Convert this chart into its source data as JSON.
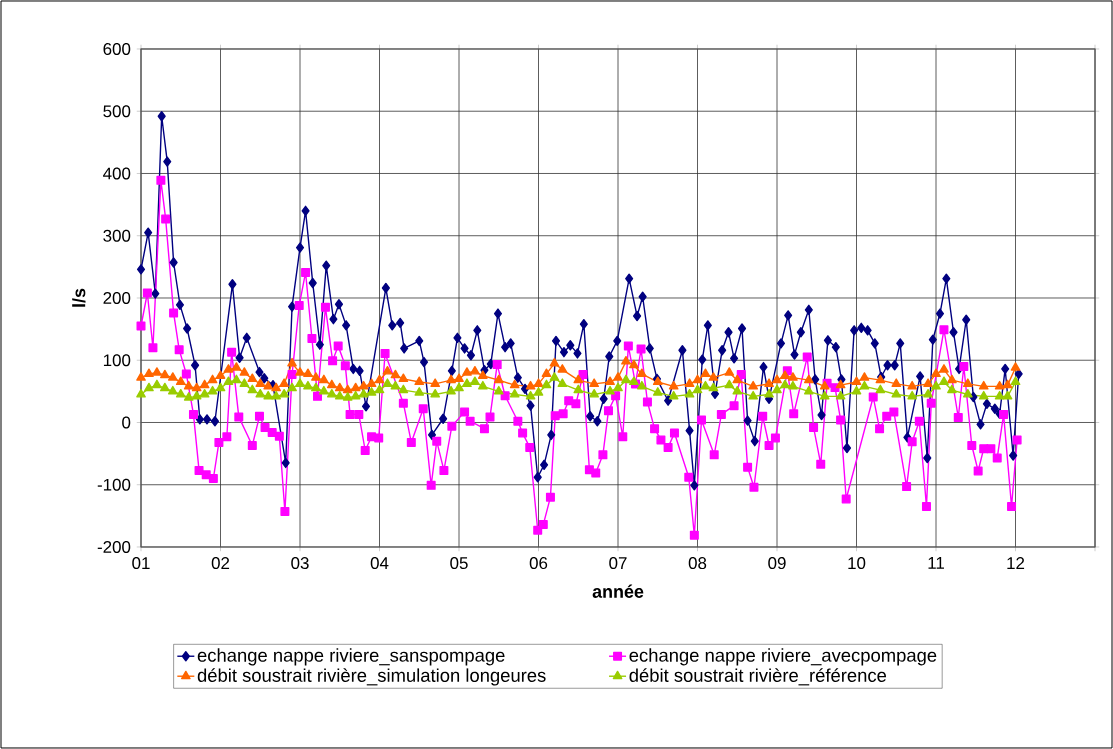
{
  "chart_data": {
    "type": "line",
    "xlabel": "année",
    "ylabel": "l/s",
    "xlim": [
      1,
      13
    ],
    "ylim": [
      -200,
      600
    ],
    "xticks": [
      {
        "value": 1,
        "label": "01"
      },
      {
        "value": 2,
        "label": "02"
      },
      {
        "value": 3,
        "label": "03"
      },
      {
        "value": 4,
        "label": "04"
      },
      {
        "value": 5,
        "label": "05"
      },
      {
        "value": 6,
        "label": "06"
      },
      {
        "value": 7,
        "label": "07"
      },
      {
        "value": 8,
        "label": "08"
      },
      {
        "value": 9,
        "label": "09"
      },
      {
        "value": 10,
        "label": "10"
      },
      {
        "value": 11,
        "label": "11"
      },
      {
        "value": 12,
        "label": "12"
      },
      {
        "value": 13,
        "label": null
      }
    ],
    "yticks": [
      -200,
      -100,
      0,
      100,
      200,
      300,
      400,
      500,
      600
    ],
    "grid": true,
    "legend": "bottom",
    "line_style": "solid",
    "series": [
      {
        "name": "echange nappe riviere_sanspompage",
        "color": "#000080",
        "marker": "diamond",
        "x": [
          1.0,
          1.09,
          1.18,
          1.26,
          1.33,
          1.41,
          1.49,
          1.58,
          1.68,
          1.74,
          1.83,
          1.93,
          2.15,
          2.24,
          2.33,
          2.49,
          2.55,
          2.66,
          2.82,
          2.9,
          3.0,
          3.07,
          3.16,
          3.25,
          3.33,
          3.42,
          3.49,
          3.58,
          3.67,
          3.75,
          3.83,
          4.08,
          4.16,
          4.26,
          4.31,
          4.5,
          4.56,
          4.66,
          4.8,
          4.91,
          4.98,
          5.07,
          5.15,
          5.23,
          5.32,
          5.4,
          5.49,
          5.58,
          5.65,
          5.74,
          5.83,
          5.9,
          5.99,
          6.07,
          6.16,
          6.22,
          6.32,
          6.4,
          6.49,
          6.57,
          6.65,
          6.74,
          6.82,
          6.89,
          6.99,
          7.14,
          7.24,
          7.31,
          7.4,
          7.49,
          7.63,
          7.81,
          7.9,
          7.96,
          8.06,
          8.13,
          8.22,
          8.31,
          8.39,
          8.46,
          8.56,
          8.63,
          8.72,
          8.83,
          8.9,
          9.05,
          9.14,
          9.22,
          9.3,
          9.4,
          9.48,
          9.56,
          9.64,
          9.74,
          9.81,
          9.88,
          9.97,
          10.06,
          10.14,
          10.23,
          10.31,
          10.39,
          10.48,
          10.55,
          10.64,
          10.8,
          10.89,
          10.96,
          11.05,
          11.13,
          11.22,
          11.29,
          11.38,
          11.47,
          11.56,
          11.64,
          11.74,
          11.8,
          11.87,
          11.97,
          12.04
        ],
        "values": [
          246,
          305,
          207,
          492,
          419,
          257,
          189,
          151,
          92,
          5,
          5,
          2,
          222,
          104,
          136,
          81,
          71,
          60,
          -65,
          186,
          281,
          340,
          224,
          125,
          252,
          166,
          190,
          156,
          86,
          83,
          26,
          216,
          156,
          160,
          119,
          131,
          97,
          -20,
          6,
          83,
          136,
          119,
          108,
          148,
          84,
          94,
          175,
          121,
          127,
          72,
          54,
          27,
          -88,
          -68,
          -20,
          131,
          113,
          124,
          111,
          158,
          10,
          2,
          38,
          106,
          131,
          231,
          171,
          202,
          119,
          70,
          35,
          116,
          -13,
          -101,
          101,
          156,
          46,
          116,
          145,
          103,
          151,
          3,
          -30,
          89,
          38,
          127,
          172,
          109,
          145,
          181,
          69,
          12,
          132,
          121,
          69,
          -41,
          148,
          152,
          148,
          127,
          73,
          92,
          92,
          127,
          -24,
          74,
          -57,
          133,
          175,
          231,
          145,
          86,
          165,
          41,
          -3,
          30,
          22,
          14,
          86,
          -53,
          78
        ]
      },
      {
        "name": "echange nappe riviere_avecpompage",
        "color": "#ff00ff",
        "marker": "square",
        "x": [
          1.0,
          1.08,
          1.15,
          1.25,
          1.31,
          1.41,
          1.48,
          1.57,
          1.66,
          1.73,
          1.82,
          1.91,
          1.98,
          2.08,
          2.14,
          2.23,
          2.4,
          2.49,
          2.56,
          2.65,
          2.74,
          2.81,
          2.9,
          2.99,
          3.07,
          3.15,
          3.22,
          3.32,
          3.41,
          3.48,
          3.57,
          3.63,
          3.74,
          3.82,
          3.9,
          3.99,
          4.07,
          4.3,
          4.4,
          4.55,
          4.65,
          4.72,
          4.81,
          4.91,
          5.07,
          5.14,
          5.32,
          5.39,
          5.48,
          5.58,
          5.74,
          5.8,
          5.89,
          5.99,
          6.06,
          6.15,
          6.21,
          6.31,
          6.38,
          6.47,
          6.56,
          6.64,
          6.72,
          6.81,
          6.88,
          6.97,
          7.06,
          7.13,
          7.22,
          7.29,
          7.37,
          7.46,
          7.54,
          7.63,
          7.71,
          7.89,
          7.96,
          8.05,
          8.21,
          8.3,
          8.46,
          8.55,
          8.63,
          8.71,
          8.82,
          8.9,
          8.98,
          9.13,
          9.21,
          9.38,
          9.46,
          9.55,
          9.63,
          9.73,
          9.8,
          9.87,
          10.21,
          10.29,
          10.38,
          10.47,
          10.63,
          10.7,
          10.79,
          10.88,
          10.94,
          11.1,
          11.28,
          11.35,
          11.45,
          11.53,
          11.6,
          11.69,
          11.77,
          11.85,
          11.95,
          12.02
        ],
        "values": [
          155,
          208,
          120,
          389,
          327,
          176,
          117,
          78,
          13,
          -77,
          -84,
          -90,
          -32,
          -23,
          113,
          9,
          -37,
          10,
          -8,
          -16,
          -22,
          -143,
          77,
          188,
          241,
          135,
          42,
          185,
          99,
          123,
          91,
          13,
          13,
          -45,
          -23,
          -25,
          111,
          31,
          -32,
          22,
          -101,
          -30,
          -77,
          -6,
          17,
          2,
          -10,
          9,
          93,
          43,
          2,
          -17,
          -40,
          -173,
          -164,
          -120,
          11,
          14,
          35,
          30,
          77,
          -76,
          -81,
          -52,
          19,
          43,
          -23,
          123,
          62,
          118,
          33,
          -10,
          -28,
          -40,
          -17,
          -88,
          -181,
          4,
          -52,
          13,
          27,
          77,
          -72,
          -104,
          10,
          -37,
          -25,
          83,
          14,
          105,
          -8,
          -67,
          63,
          56,
          4,
          -123,
          41,
          -10,
          10,
          17,
          -103,
          -31,
          2,
          -135,
          31,
          149,
          8,
          90,
          -37,
          -78,
          -42,
          -42,
          -57,
          13,
          -135,
          -28
        ]
      },
      {
        "name": "débit soustrait rivière_simulation longeures",
        "color": "#ff6600",
        "marker": "triangle",
        "x": [
          1.0,
          1.1,
          1.2,
          1.3,
          1.4,
          1.5,
          1.6,
          1.7,
          1.8,
          1.9,
          2.0,
          2.1,
          2.2,
          2.3,
          2.4,
          2.5,
          2.6,
          2.7,
          2.8,
          2.9,
          3.0,
          3.1,
          3.2,
          3.3,
          3.4,
          3.5,
          3.6,
          3.7,
          3.8,
          3.9,
          4.0,
          4.1,
          4.2,
          4.3,
          4.5,
          4.7,
          4.9,
          5.0,
          5.1,
          5.2,
          5.3,
          5.5,
          5.7,
          5.9,
          6.0,
          6.1,
          6.2,
          6.3,
          6.5,
          6.7,
          6.9,
          7.0,
          7.1,
          7.2,
          7.3,
          7.5,
          7.7,
          7.9,
          8.0,
          8.1,
          8.2,
          8.4,
          8.5,
          8.7,
          8.9,
          9.0,
          9.1,
          9.2,
          9.4,
          9.6,
          9.8,
          10.0,
          10.1,
          10.3,
          10.5,
          10.7,
          10.9,
          11.0,
          11.1,
          11.2,
          11.4,
          11.6,
          11.8,
          11.9,
          12.0
        ],
        "values": [
          72,
          78,
          80,
          76,
          72,
          65,
          58,
          55,
          60,
          68,
          75,
          85,
          88,
          80,
          70,
          62,
          58,
          55,
          62,
          95,
          80,
          78,
          72,
          68,
          60,
          55,
          52,
          55,
          58,
          62,
          68,
          82,
          76,
          70,
          65,
          62,
          68,
          70,
          80,
          82,
          75,
          68,
          60,
          58,
          62,
          78,
          95,
          85,
          68,
          62,
          65,
          72,
          98,
          92,
          78,
          65,
          58,
          62,
          68,
          78,
          72,
          80,
          68,
          58,
          62,
          68,
          75,
          72,
          68,
          58,
          60,
          65,
          72,
          68,
          62,
          58,
          62,
          78,
          85,
          68,
          62,
          58,
          58,
          60,
          88
        ]
      },
      {
        "name": "débit soustrait rivière_référence",
        "color": "#99cc00",
        "marker": "triangle",
        "x": [
          1.0,
          1.1,
          1.2,
          1.3,
          1.4,
          1.5,
          1.6,
          1.7,
          1.8,
          1.9,
          2.0,
          2.1,
          2.2,
          2.3,
          2.4,
          2.5,
          2.6,
          2.7,
          2.8,
          2.9,
          3.0,
          3.1,
          3.2,
          3.3,
          3.4,
          3.5,
          3.6,
          3.7,
          3.8,
          3.9,
          4.0,
          4.1,
          4.2,
          4.3,
          4.5,
          4.7,
          4.9,
          5.0,
          5.1,
          5.2,
          5.3,
          5.5,
          5.7,
          5.9,
          6.0,
          6.1,
          6.2,
          6.3,
          6.5,
          6.7,
          6.9,
          7.0,
          7.1,
          7.2,
          7.3,
          7.5,
          7.7,
          7.9,
          8.0,
          8.1,
          8.2,
          8.4,
          8.5,
          8.7,
          8.9,
          9.0,
          9.1,
          9.2,
          9.4,
          9.6,
          9.8,
          10.0,
          10.1,
          10.3,
          10.5,
          10.7,
          10.9,
          11.0,
          11.1,
          11.2,
          11.4,
          11.6,
          11.8,
          11.9,
          12.0
        ],
        "values": [
          45,
          55,
          60,
          55,
          50,
          45,
          40,
          42,
          45,
          50,
          55,
          65,
          68,
          62,
          52,
          45,
          42,
          42,
          45,
          55,
          62,
          58,
          55,
          50,
          45,
          42,
          40,
          42,
          45,
          48,
          52,
          62,
          58,
          52,
          48,
          45,
          50,
          55,
          62,
          65,
          58,
          50,
          45,
          42,
          48,
          60,
          72,
          62,
          52,
          45,
          50,
          55,
          68,
          65,
          58,
          48,
          42,
          45,
          52,
          58,
          55,
          60,
          50,
          42,
          45,
          52,
          60,
          58,
          50,
          42,
          42,
          50,
          58,
          52,
          45,
          42,
          45,
          58,
          65,
          52,
          45,
          42,
          42,
          42,
          65
        ]
      }
    ]
  }
}
